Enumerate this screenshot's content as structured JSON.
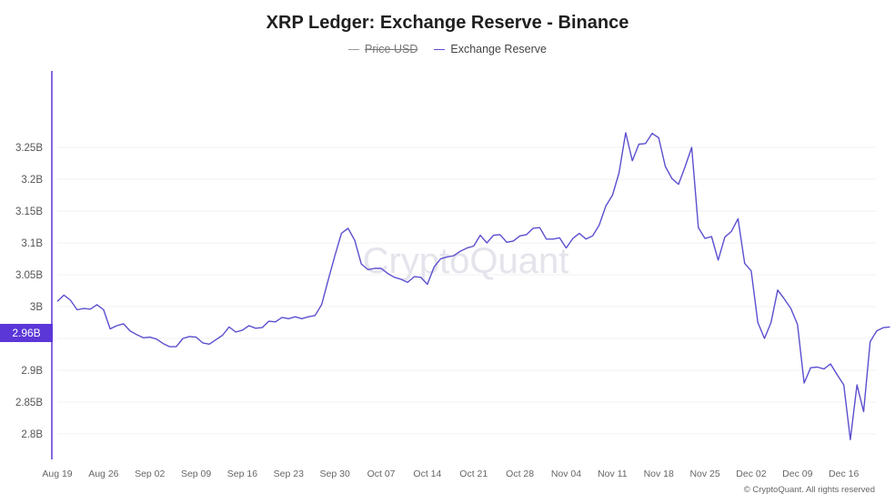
{
  "chart_data": {
    "type": "line",
    "title": "XRP Ledger: Exchange Reserve - Binance",
    "legend": [
      {
        "label": "Price USD",
        "color": "#9e9e9e",
        "hidden": true
      },
      {
        "label": "Exchange Reserve",
        "color": "#5b4fcf",
        "hidden": false
      }
    ],
    "y_axis": {
      "min": 2.76,
      "max": 3.37,
      "ticks": [
        2.8,
        2.85,
        2.9,
        2.95,
        3.0,
        3.05,
        3.1,
        3.15,
        3.2,
        3.25
      ],
      "tick_labels": [
        "2.8B",
        "2.85B",
        "2.9B",
        "2.95B",
        "3B",
        "3.05B",
        "3.1B",
        "3.15B",
        "3.2B",
        "3.25B"
      ]
    },
    "x_axis": {
      "ticks": [
        {
          "label": "Aug 19",
          "day": 0
        },
        {
          "label": "Aug 26",
          "day": 7
        },
        {
          "label": "Sep 02",
          "day": 14
        },
        {
          "label": "Sep 09",
          "day": 21
        },
        {
          "label": "Sep 16",
          "day": 28
        },
        {
          "label": "Sep 23",
          "day": 35
        },
        {
          "label": "Sep 30",
          "day": 42
        },
        {
          "label": "Oct 07",
          "day": 49
        },
        {
          "label": "Oct 14",
          "day": 56
        },
        {
          "label": "Oct 21",
          "day": 63
        },
        {
          "label": "Oct 28",
          "day": 70
        },
        {
          "label": "Nov 04",
          "day": 77
        },
        {
          "label": "Nov 11",
          "day": 84
        },
        {
          "label": "Nov 18",
          "day": 91
        },
        {
          "label": "Nov 25",
          "day": 98
        },
        {
          "label": "Dec 02",
          "day": 105
        },
        {
          "label": "Dec 09",
          "day": 112
        },
        {
          "label": "Dec 16",
          "day": 119
        }
      ],
      "last_day": 124
    },
    "series": [
      {
        "name": "Exchange Reserve",
        "color": "#5b4fcf",
        "values": [
          3.008,
          3.018,
          3.01,
          2.995,
          2.997,
          2.996,
          3.003,
          2.995,
          2.965,
          2.97,
          2.973,
          2.962,
          2.956,
          2.951,
          2.952,
          2.949,
          2.942,
          2.937,
          2.937,
          2.95,
          2.953,
          2.952,
          2.943,
          2.941,
          2.948,
          2.955,
          2.968,
          2.96,
          2.963,
          2.97,
          2.966,
          2.967,
          2.977,
          2.976,
          2.983,
          2.981,
          2.984,
          2.981,
          2.984,
          2.986,
          3.003,
          3.042,
          3.08,
          3.115,
          3.123,
          3.104,
          3.067,
          3.058,
          3.06,
          3.06,
          3.052,
          3.046,
          3.043,
          3.038,
          3.047,
          3.046,
          3.035,
          3.062,
          3.075,
          3.078,
          3.08,
          3.087,
          3.092,
          3.095,
          3.112,
          3.1,
          3.112,
          3.113,
          3.101,
          3.103,
          3.111,
          3.113,
          3.123,
          3.124,
          3.106,
          3.106,
          3.108,
          3.092,
          3.107,
          3.115,
          3.106,
          3.111,
          3.128,
          3.158,
          3.175,
          3.21,
          3.273,
          3.229,
          3.255,
          3.256,
          3.272,
          3.265,
          3.22,
          3.201,
          3.192,
          3.22,
          3.25,
          3.124,
          3.107,
          3.11,
          3.073,
          3.109,
          3.118,
          3.138,
          3.068,
          3.056,
          2.975,
          2.95,
          2.975,
          3.026,
          3.012,
          2.997,
          2.972,
          2.88,
          2.904,
          2.905,
          2.902,
          2.91,
          2.893,
          2.877,
          2.791,
          2.877,
          2.835,
          2.945,
          2.962,
          2.967,
          2.968
        ]
      }
    ],
    "current_value_label": "2.96B",
    "watermark": "CryptoQuant",
    "credit": "© CryptoQuant. All rights reserved"
  }
}
